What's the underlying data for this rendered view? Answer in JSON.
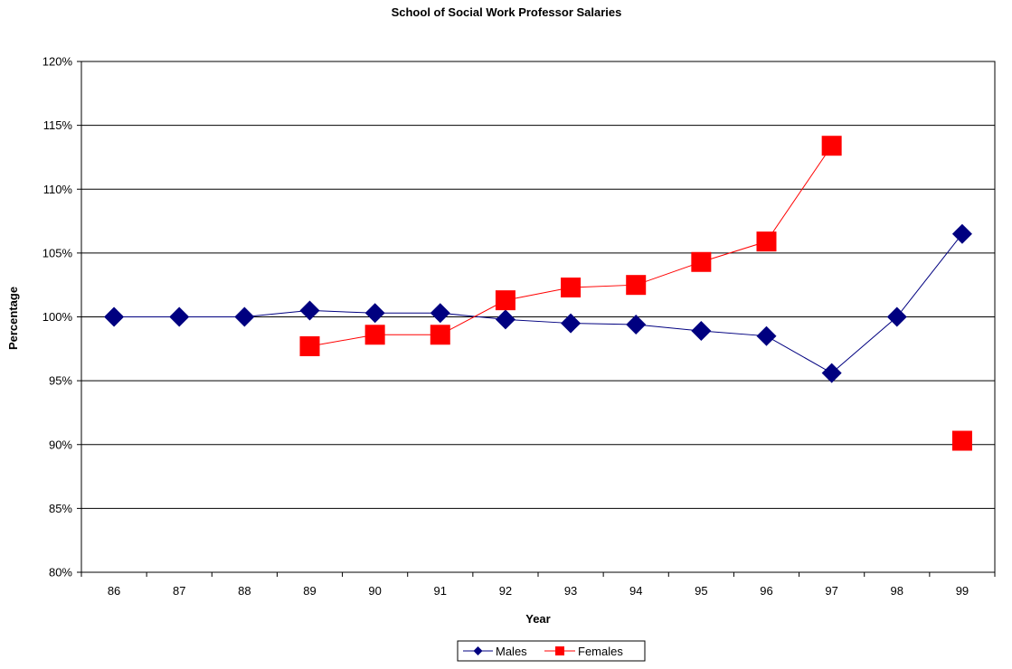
{
  "chart_data": {
    "type": "line",
    "title": "School of Social Work Professor Salaries",
    "xlabel": "Year",
    "ylabel": "Percentage",
    "categories": [
      "86",
      "87",
      "88",
      "89",
      "90",
      "91",
      "92",
      "93",
      "94",
      "95",
      "96",
      "97",
      "98",
      "99"
    ],
    "ylim": [
      80,
      120
    ],
    "yticks": [
      80,
      85,
      90,
      95,
      100,
      105,
      110,
      115,
      120
    ],
    "ytick_suffix": "%",
    "grid": "horizontal",
    "legend": "bottom",
    "series": [
      {
        "name": "Males",
        "color": "#000080",
        "marker": "diamond",
        "values": [
          100,
          100,
          100,
          100.5,
          100.3,
          100.3,
          99.8,
          99.5,
          99.4,
          98.9,
          98.5,
          95.6,
          100,
          106.5
        ]
      },
      {
        "name": "Females",
        "color": "#ff0000",
        "marker": "square",
        "values": [
          null,
          null,
          null,
          97.7,
          98.6,
          98.6,
          101.3,
          102.3,
          102.5,
          104.3,
          105.9,
          113.4,
          null,
          90.3
        ]
      }
    ]
  }
}
